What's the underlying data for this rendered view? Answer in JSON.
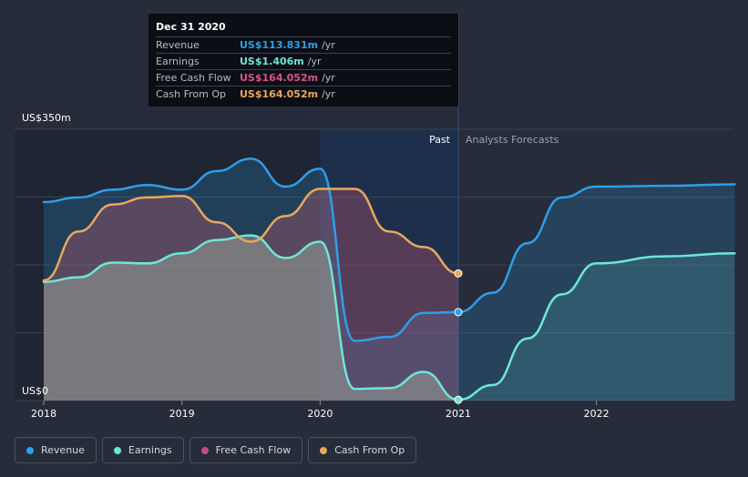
{
  "tooltip": {
    "title": "Dec 31 2020",
    "rows": [
      {
        "label": "Revenue",
        "value": "US$113.831m",
        "unit": "/yr",
        "color": "#2f9ee8"
      },
      {
        "label": "Earnings",
        "value": "US$1.406m",
        "unit": "/yr",
        "color": "#6ee6d6"
      },
      {
        "label": "Free Cash Flow",
        "value": "US$164.052m",
        "unit": "/yr",
        "color": "#d9548f"
      },
      {
        "label": "Cash From Op",
        "value": "US$164.052m",
        "unit": "/yr",
        "color": "#e8a85c"
      }
    ]
  },
  "legend": [
    {
      "label": "Revenue",
      "color": "#2f9ee8"
    },
    {
      "label": "Earnings",
      "color": "#6ee6d6"
    },
    {
      "label": "Free Cash Flow",
      "color": "#c94a86"
    },
    {
      "label": "Cash From Op",
      "color": "#e8a85c"
    }
  ],
  "chart_data": {
    "type": "line",
    "y_top_label": "US$350m",
    "y_bottom_label": "US$0",
    "ylim": [
      0,
      350
    ],
    "xlim": [
      2018,
      2023.0
    ],
    "x_ticks": [
      2018,
      2019,
      2020,
      2021,
      2022
    ],
    "x_tick_labels": [
      "2018",
      "2019",
      "2020",
      "2021",
      "2022"
    ],
    "past_label": "Past",
    "forecast_label": "Analysts Forecasts",
    "past_end_x": 2021,
    "highlight_start_x": 2020,
    "series": [
      {
        "name": "Revenue",
        "color": "#2f9ee8",
        "x": [
          2018,
          2018.25,
          2018.5,
          2018.75,
          2019,
          2019.25,
          2019.5,
          2019.75,
          2020,
          2020.25,
          2020.5,
          2020.75,
          2021,
          2021.25,
          2021.5,
          2021.75,
          2022,
          2022.5,
          2023.0
        ],
        "values": [
          256,
          262,
          272,
          278,
          272,
          296,
          312,
          276,
          299,
          77,
          82,
          113,
          114,
          139,
          203,
          262,
          276,
          277,
          279
        ]
      },
      {
        "name": "Earnings",
        "color": "#6ee6d6",
        "x": [
          2018,
          2018.25,
          2018.5,
          2018.75,
          2019,
          2019.25,
          2019.5,
          2019.75,
          2020,
          2020.25,
          2020.5,
          2020.75,
          2021,
          2021.25,
          2021.5,
          2021.75,
          2022,
          2022.5,
          2023.0
        ],
        "values": [
          153,
          159,
          178,
          177,
          190,
          207,
          213,
          184,
          205,
          15,
          16,
          37,
          1,
          20,
          80,
          137,
          177,
          186,
          190
        ]
      },
      {
        "name": "Cash From Op",
        "color": "#e8a85c",
        "x": [
          2018,
          2018.25,
          2018.5,
          2018.75,
          2019,
          2019.25,
          2019.5,
          2019.75,
          2020,
          2020.25,
          2020.5,
          2020.75,
          2021
        ],
        "values": [
          155,
          218,
          253,
          262,
          264,
          230,
          205,
          238,
          273,
          273,
          218,
          198,
          164
        ]
      }
    ]
  }
}
